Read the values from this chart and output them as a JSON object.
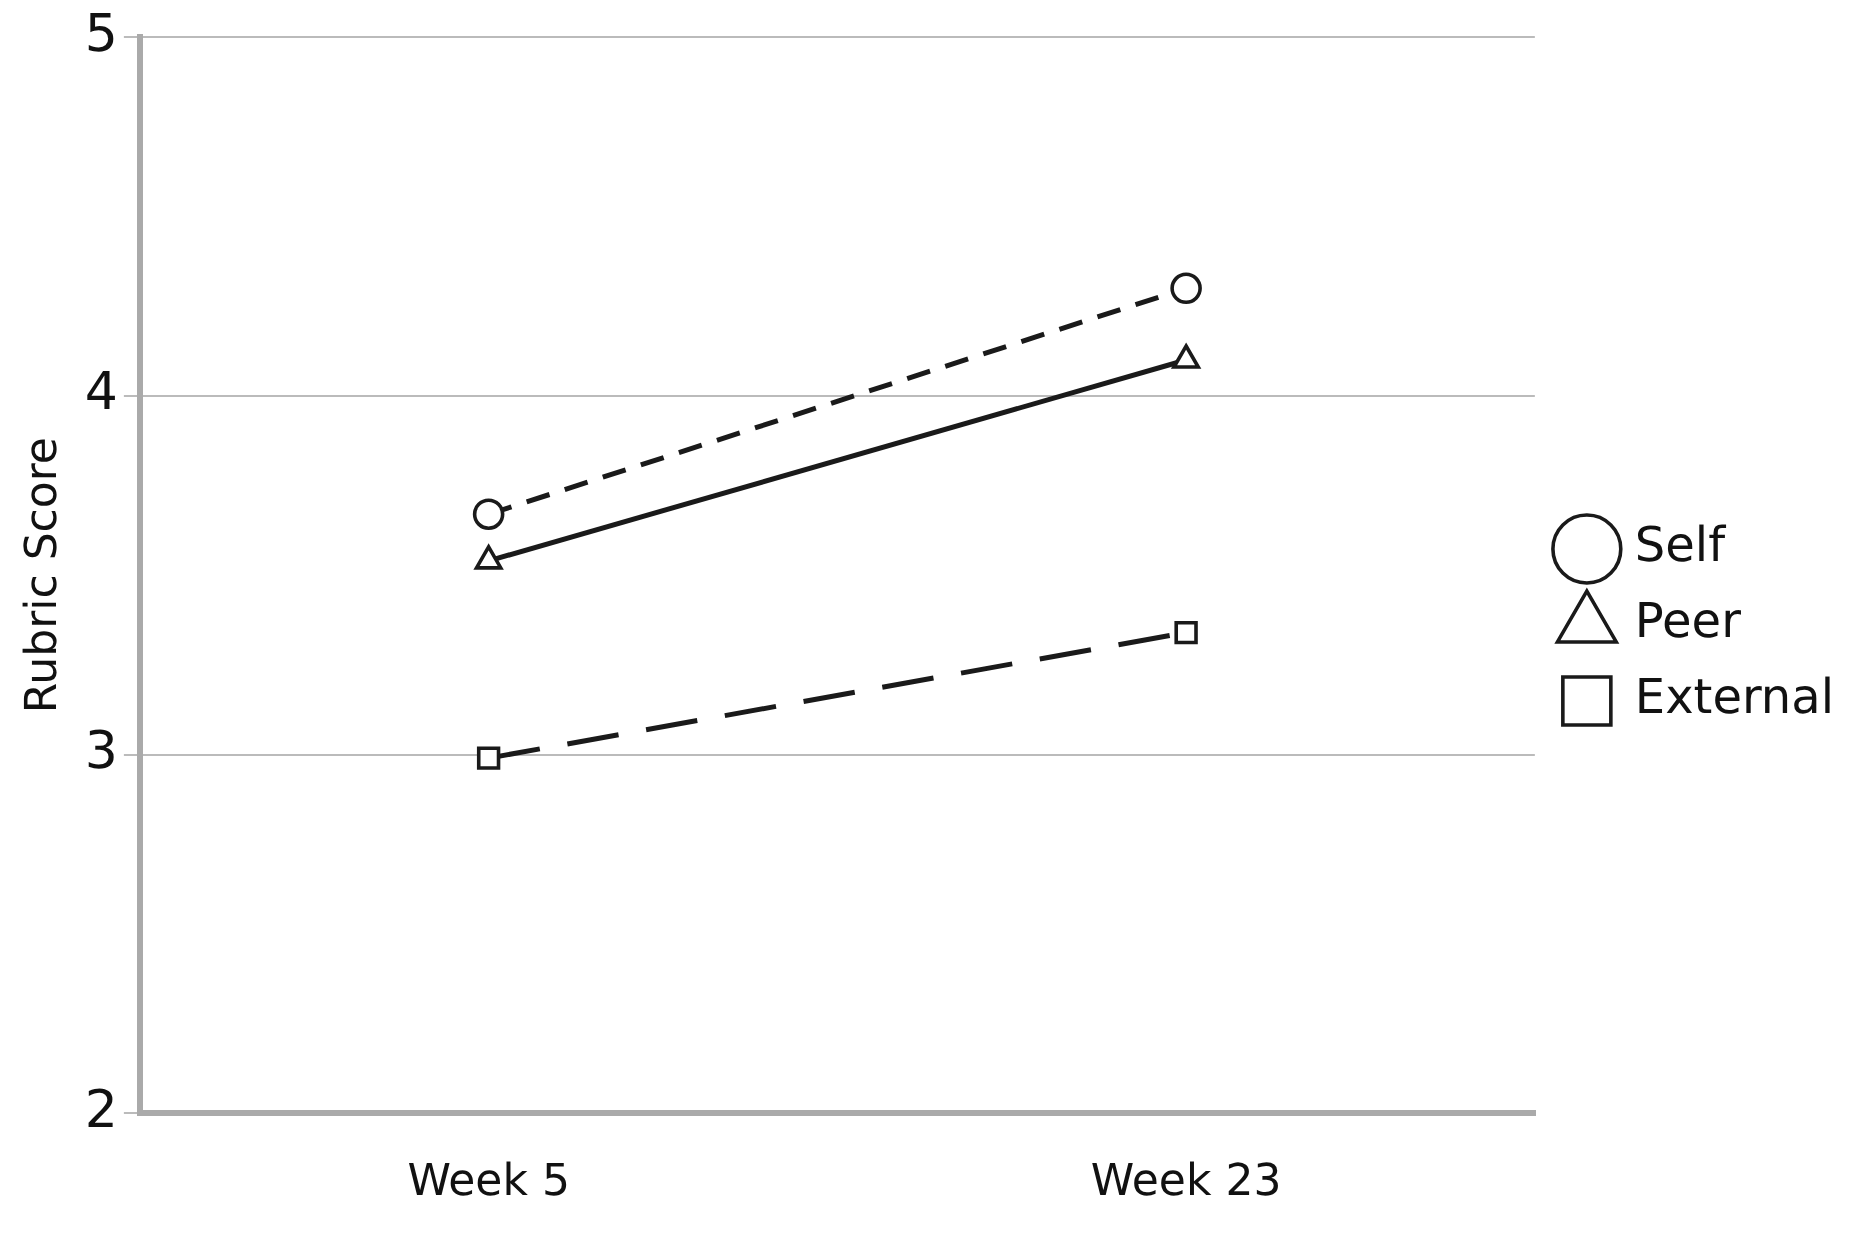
{
  "chart_data": {
    "type": "line",
    "ylabel": "Rubric Score",
    "categories": [
      "Week 5",
      "Week 23"
    ],
    "series": [
      {
        "name": "Self",
        "color": "#1a1a1a",
        "values": [
          3.67,
          4.3
        ],
        "marker": "circle",
        "line_style": "dashed"
      },
      {
        "name": "Peer",
        "color": "#1a1a1a",
        "values": [
          3.54,
          4.1
        ],
        "marker": "triangle",
        "line_style": "solid"
      },
      {
        "name": "External",
        "color": "#1a1a1a",
        "values": [
          2.99,
          3.34
        ],
        "marker": "square",
        "line_style": "dashed"
      }
    ],
    "ylim": [
      2,
      5
    ],
    "yticks": [
      2,
      3,
      4,
      5
    ],
    "grid": "y",
    "legend": "right"
  }
}
